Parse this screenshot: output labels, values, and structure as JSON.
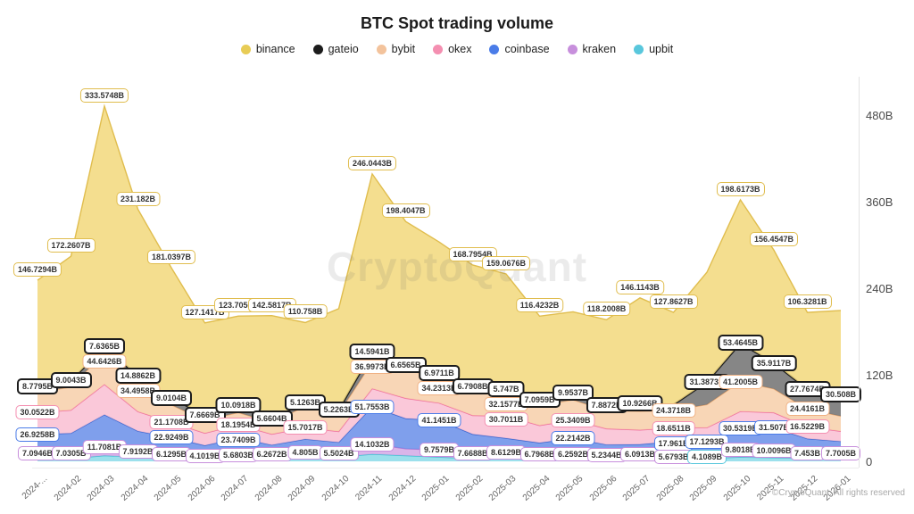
{
  "title": "BTC Spot trading volume",
  "watermark": "CryptoQuant",
  "copyright": "©CryptoQuant. All rights reserved",
  "y_axis": {
    "ticks": [
      "0",
      "120B",
      "240B",
      "360B",
      "480B"
    ],
    "values": [
      0,
      120,
      240,
      360,
      480
    ],
    "max": 480
  },
  "x_axis": {
    "display_labels": [
      "2024-...",
      "2024-02",
      "2024-03",
      "2024-04",
      "2024-05",
      "2024-06",
      "2024-07",
      "2024-08",
      "2024-09",
      "2024-10",
      "2024-11",
      "2024-12",
      "2025-01",
      "2025-02",
      "2025-03",
      "2025-04",
      "2025-05",
      "2025-06",
      "2025-07",
      "2025-08",
      "2025-09",
      "2025-10",
      "2025-11",
      "2025-12",
      "2026-01"
    ]
  },
  "chart_data": {
    "type": "area",
    "stacked": true,
    "unit": "USD billions (B)",
    "title": "BTC Spot trading volume",
    "legend_position": "top",
    "grid": false,
    "months": [
      "2024-01",
      "2024-02",
      "2024-03",
      "2024-04",
      "2024-05",
      "2024-06",
      "2024-07",
      "2024-08",
      "2024-09",
      "2024-10",
      "2024-11",
      "2024-12",
      "2025-01",
      "2025-02",
      "2025-03",
      "2025-04",
      "2025-05",
      "2025-06",
      "2025-07",
      "2025-08",
      "2025-09",
      "2025-10",
      "2025-11",
      "2025-12",
      "2026-01"
    ],
    "series": [
      {
        "name": "binance",
        "dot": "#e8cc56",
        "fill": "#f2d980",
        "stroke": "#e0bd4e",
        "chip_border": "#e0bd4e",
        "chip_border_width": 1.5,
        "values": [
          146.7294,
          172.2607,
          333.5748,
          231.182,
          181.0397,
          127.1417,
          123.7056,
          142.5817,
          110.758,
          140,
          246.0443,
          198.4047,
          182,
          168.7954,
          159.0676,
          116.4232,
          112,
          118.2008,
          146.1143,
          127.8627,
          152,
          198.6173,
          156.4547,
          106.3281,
          116
        ],
        "labels": [
          "146.7294B",
          "172.2607B",
          "333.5748B",
          "231.182B",
          "181.0397B",
          "127.1417B",
          "123.7056B",
          "142.5817B",
          "110.758B",
          null,
          "246.0443B",
          "198.4047B",
          null,
          "168.7954B",
          "159.0676B",
          "116.4232B",
          null,
          "118.2008B",
          "146.1143B",
          "127.8627B",
          null,
          "198.6173B",
          "156.4547B",
          "106.3281B",
          null
        ]
      },
      {
        "name": "gateio",
        "dot": "#1c1c1c",
        "fill": "#757575",
        "stroke": "#1c1c1c",
        "chip_border": "#1c1c1c",
        "chip_border_width": 2.5,
        "values": [
          8.7795,
          9.0043,
          7.6365,
          14.8862,
          9.0104,
          7.6669,
          10.0918,
          5.6604,
          5.1263,
          5.2263,
          14.5941,
          6.6565,
          6.9711,
          6.7908,
          5.747,
          7.0959,
          9.9537,
          7.8872,
          10.9266,
          8,
          31.3873,
          53.4645,
          35.9117,
          27.7674,
          30.508
        ],
        "labels": [
          "8.7795B",
          "9.0043B",
          "7.6365B",
          "14.8862B",
          "9.0104B",
          "7.6669B",
          "10.0918B",
          "5.6604B",
          "5.1263B",
          "5.2263B",
          "14.5941B",
          "6.6565B",
          "6.9711B",
          "6.7908B",
          "5.747B",
          "7.0959B",
          "9.9537B",
          "7.8872B",
          "10.9266B",
          null,
          "31.3873B",
          "53.4645B",
          "35.9117B",
          "27.7674B",
          "30.508B"
        ]
      },
      {
        "name": "bybit",
        "dot": "#f3c39c",
        "fill": "#f7d0ac",
        "stroke": "#eeab72",
        "chip_border": "#f0b183",
        "chip_border_width": 1.5,
        "values": [
          28,
          32,
          44.6426,
          34.4958,
          24,
          18,
          17,
          16,
          30,
          25,
          36.9973,
          40,
          34.2313,
          33,
          32.1577,
          28,
          28,
          25,
          26,
          24.3718,
          32,
          41.2005,
          33,
          24.4161,
          21
        ],
        "labels": [
          null,
          null,
          "44.6426B",
          "34.4958B",
          null,
          null,
          null,
          null,
          null,
          null,
          "36.9973B",
          null,
          "34.2313B",
          null,
          "32.1577B",
          null,
          null,
          null,
          null,
          "24.3718B",
          null,
          "41.2005B",
          null,
          "24.4161B",
          null
        ]
      },
      {
        "name": "okex",
        "dot": "#f48fb1",
        "fill": "#f9c0d4",
        "stroke": "#f06e9f",
        "chip_border": "#f48fb1",
        "chip_border_width": 1.5,
        "values": [
          30.0522,
          32,
          42,
          27,
          21.1708,
          17,
          18.1954,
          15,
          15.7017,
          15,
          25,
          28,
          24,
          26,
          30.7011,
          24,
          25.3409,
          22,
          20,
          18.6511,
          19,
          23,
          21,
          16.5229,
          14
        ],
        "labels": [
          "30.0522B",
          null,
          null,
          null,
          "21.1708B",
          null,
          "18.1954B",
          null,
          "15.7017B",
          null,
          null,
          null,
          null,
          null,
          "30.7011B",
          null,
          "25.3409B",
          null,
          null,
          "18.6511B",
          null,
          null,
          null,
          "16.5229B",
          null
        ]
      },
      {
        "name": "coinbase",
        "dot": "#4a7ce8",
        "fill": "#6d92e9",
        "stroke": "#3a66d0",
        "chip_border": "#4a7ce8",
        "chip_border_width": 1.5,
        "values": [
          26.9258,
          28,
          45,
          28,
          22.9249,
          15,
          23.7409,
          13,
          18,
          15,
          51.7553,
          42,
          41.1451,
          26,
          20,
          16,
          22.2142,
          15,
          14,
          17.961,
          17.1293,
          30.5319,
          31.507,
          20,
          17
        ],
        "labels": [
          "26.9258B",
          null,
          null,
          null,
          "22.9249B",
          null,
          "23.7409B",
          null,
          null,
          null,
          "51.7553B",
          null,
          "41.1451B",
          null,
          null,
          null,
          "22.2142B",
          null,
          null,
          "17.961B",
          "17.1293B",
          "30.5319B",
          "31.507B",
          null,
          null
        ]
      },
      {
        "name": "kraken",
        "dot": "#c78fdc",
        "fill": "#d5abe6",
        "stroke": "#b877d2",
        "chip_border": "#c78fdc",
        "chip_border_width": 1.5,
        "values": [
          7.0946,
          7.0305,
          11.7081,
          7.9192,
          6.1295,
          4.1019,
          5.6803,
          6.2672,
          4.805,
          5.5024,
          14.1032,
          9.5,
          9.7579,
          7.6688,
          8.6129,
          6.7968,
          6.2592,
          5.2344,
          6.0913,
          5.6793,
          6.5,
          9.8018,
          10.0096,
          7.453,
          7.7005
        ],
        "labels": [
          "7.0946B",
          "7.0305B",
          "11.7081B",
          "7.9192B",
          "6.1295B",
          "4.1019B",
          "5.6803B",
          "6.2672B",
          "4.805B",
          "5.5024B",
          "14.1032B",
          null,
          "9.7579B",
          "7.6688B",
          "8.6129B",
          "6.7968B",
          "6.2592B",
          "5.2344B",
          "6.0913B",
          "5.6793B",
          null,
          "9.8018B",
          "10.0096B",
          "7.453B",
          "7.7005B"
        ]
      },
      {
        "name": "upbit",
        "dot": "#59c7dc",
        "fill": "#8edce9",
        "stroke": "#45bfd4",
        "chip_border": "#59c7dc",
        "chip_border_width": 1.5,
        "values": [
          3.5,
          4,
          8,
          6,
          4,
          3,
          3,
          3.5,
          8,
          6,
          10,
          8,
          6,
          4,
          3.5,
          3,
          3.5,
          3,
          3.5,
          4,
          4.1089,
          6,
          5,
          4,
          3
        ],
        "labels": [
          null,
          null,
          null,
          null,
          null,
          null,
          null,
          null,
          null,
          null,
          null,
          null,
          null,
          null,
          null,
          null,
          null,
          null,
          null,
          null,
          "4.1089B",
          null,
          null,
          null,
          null
        ]
      }
    ]
  }
}
